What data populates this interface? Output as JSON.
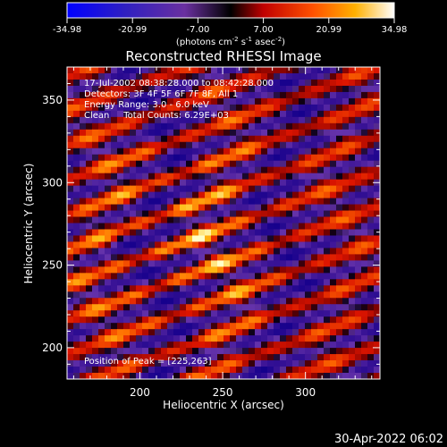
{
  "chart_data": {
    "type": "heatmap",
    "title": "Reconstructed RHESSI Image",
    "xlabel": "Heliocentric X (arcsec)",
    "ylabel": "Heliocentric Y (arcsec)",
    "xlim": [
      156,
      345
    ],
    "ylim": [
      181,
      370
    ],
    "x_ticks": [
      200,
      250,
      300
    ],
    "y_ticks": [
      200,
      250,
      300,
      350
    ],
    "colorbar": {
      "min": -34.98,
      "max": 34.98,
      "tick_labels": [
        "-34.98",
        "-20.99",
        "-7.00",
        "7.00",
        "20.99",
        "34.98"
      ],
      "unit_label_parts": [
        "(photons cm",
        "-2",
        " s",
        "-1",
        " asec",
        "-2",
        ")"
      ]
    },
    "annotations": {
      "time_range": "17-Jul-2002 08:38:28.000 to 08:42:28.000",
      "detectors": "Detectors: 3F 4F 5F 6F 7F 8F, All 1",
      "energy_range": "Energy Range: 3.0 - 6.0 keV",
      "clean_info": "Clean     Total Counts: 6.29E+03",
      "peak_position": "Position of Peak = [225,263]"
    },
    "peak": {
      "x": 225,
      "y": 263
    },
    "pattern": {
      "description": "Diagonal striped fringe pattern (modulation artifacts)",
      "stripe_slope_deg": 20,
      "peak_value": 34.98
    }
  },
  "footer": {
    "timestamp": "30-Apr-2022 06:02"
  }
}
